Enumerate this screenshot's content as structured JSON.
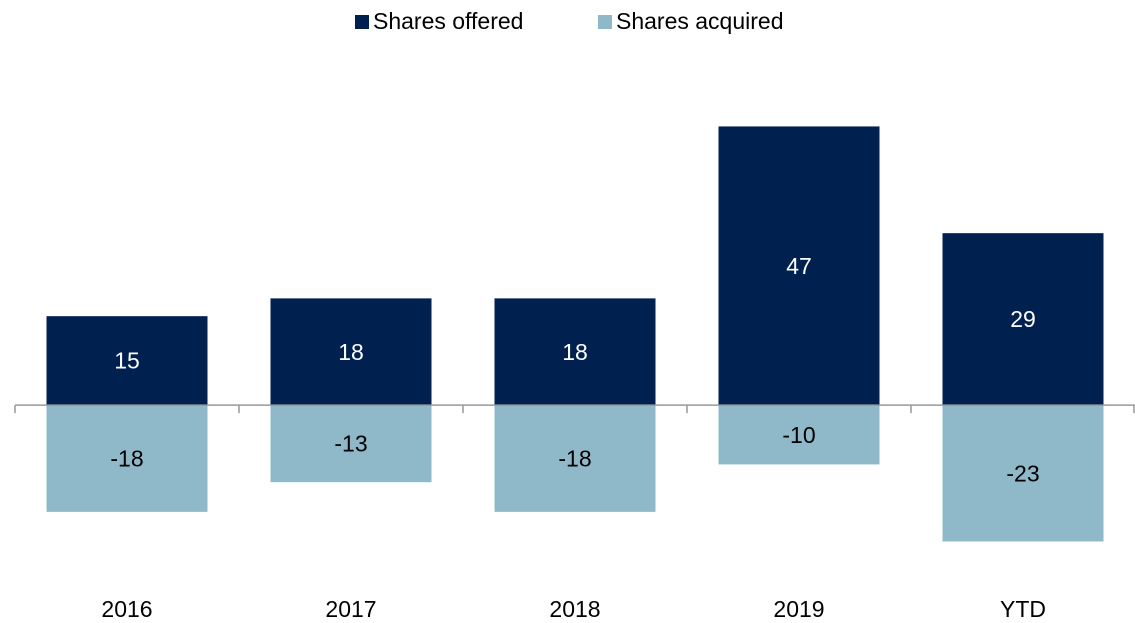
{
  "chart_data": {
    "type": "bar",
    "categories": [
      "2016",
      "2017",
      "2018",
      "2019",
      "YTD"
    ],
    "series": [
      {
        "name": "Shares offered",
        "color": "#002050",
        "values": [
          15,
          18,
          18,
          47,
          29
        ]
      },
      {
        "name": "Shares acquired",
        "color": "#8fb8c8",
        "values": [
          -18,
          -13,
          -18,
          -10,
          -23
        ]
      }
    ],
    "ylim": [
      -30,
      55
    ]
  }
}
